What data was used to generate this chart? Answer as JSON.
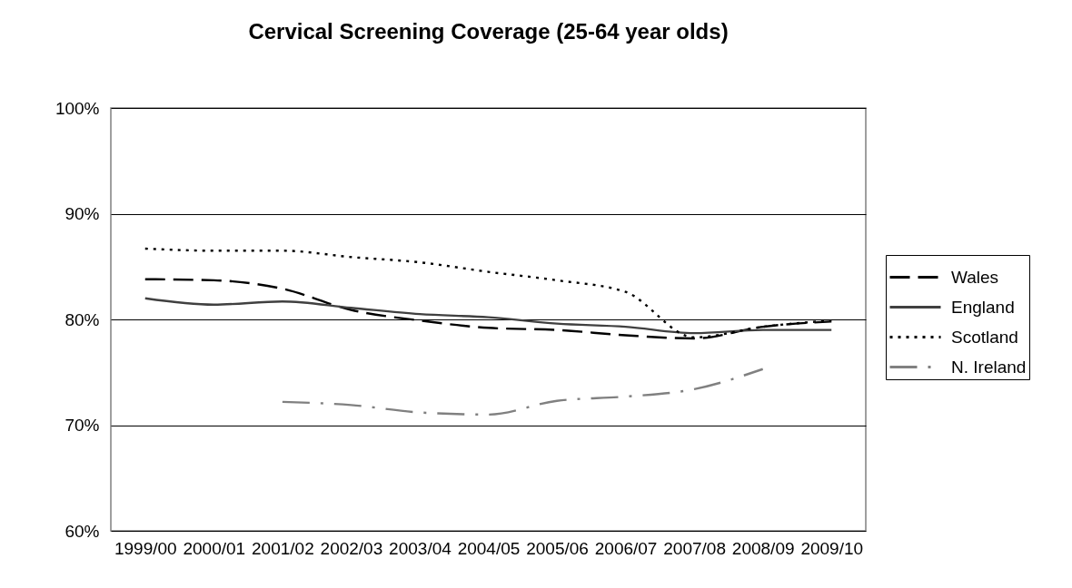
{
  "chart_data": {
    "type": "line",
    "title": "Cervical Screening Coverage (25-64 year olds)",
    "categories": [
      "1999/00",
      "2000/01",
      "2001/02",
      "2002/03",
      "2003/04",
      "2004/05",
      "2005/06",
      "2006/07",
      "2007/08",
      "2008/09",
      "2009/10"
    ],
    "series": [
      {
        "name": "Wales",
        "color": "#000000",
        "line_style": "dashed",
        "values": [
          83.8,
          83.7,
          82.9,
          80.9,
          79.9,
          79.2,
          79.0,
          78.5,
          78.2,
          79.3,
          79.8
        ]
      },
      {
        "name": "England",
        "color": "#404040",
        "line_style": "solid",
        "values": [
          82.0,
          81.4,
          81.7,
          81.1,
          80.5,
          80.2,
          79.6,
          79.3,
          78.7,
          79.0,
          79.0
        ]
      },
      {
        "name": "Scotland",
        "color": "#000000",
        "line_style": "dotted",
        "values": [
          86.7,
          86.5,
          86.5,
          85.9,
          85.4,
          84.5,
          83.7,
          82.6,
          78.3,
          79.3,
          79.9
        ]
      },
      {
        "name": "N. Ireland",
        "color": "#808080",
        "line_style": "dashdot",
        "values": [
          null,
          null,
          72.2,
          71.9,
          71.2,
          71.0,
          72.3,
          72.7,
          73.4,
          75.3,
          null
        ]
      }
    ],
    "ylim": [
      60,
      100
    ],
    "yticks": [
      {
        "value": 60,
        "label": "60%"
      },
      {
        "value": 70,
        "label": "70%"
      },
      {
        "value": 80,
        "label": "80%"
      },
      {
        "value": 90,
        "label": "90%"
      },
      {
        "value": 100,
        "label": "100%"
      }
    ],
    "grid": "y",
    "legend": "right"
  }
}
